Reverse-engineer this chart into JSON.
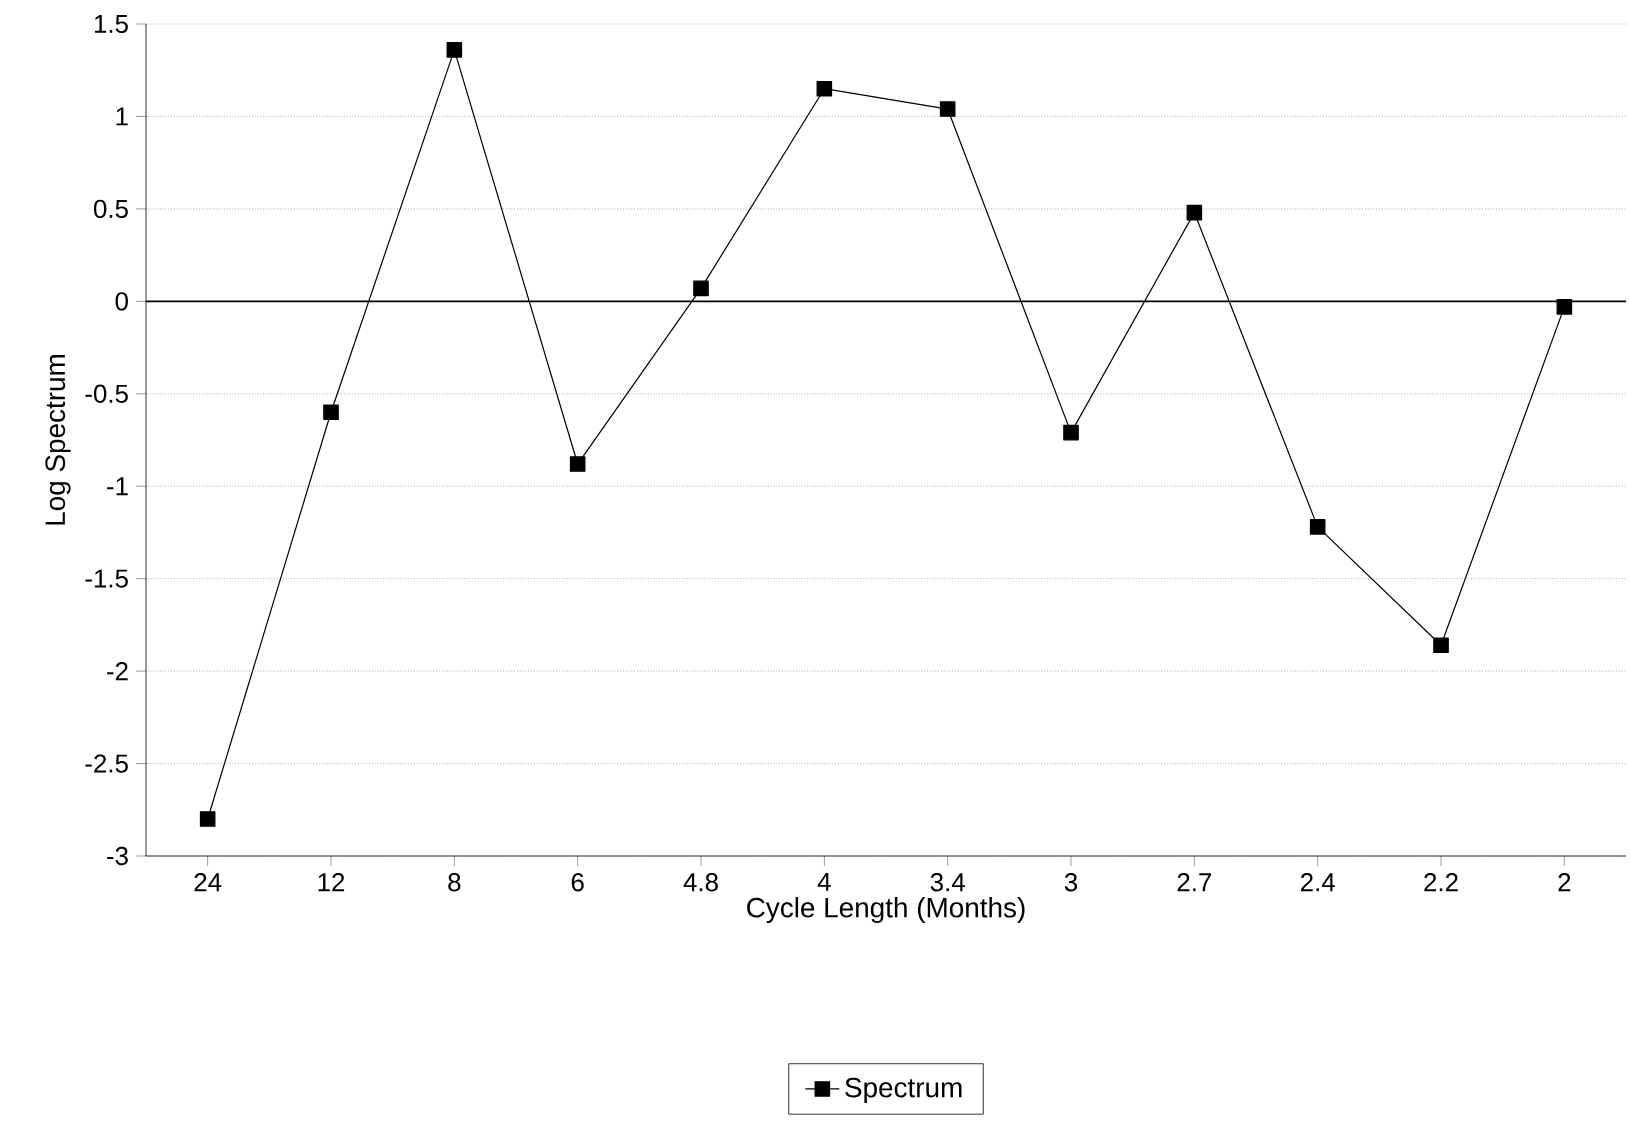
{
  "chart_data": {
    "type": "line",
    "xlabel": "Cycle Length (Months)",
    "ylabel": "Log Spectrum",
    "categories": [
      "24",
      "12",
      "8",
      "6",
      "4.8",
      "4",
      "3.4",
      "3",
      "2.7",
      "2.4",
      "2.2",
      "2"
    ],
    "series": [
      {
        "name": "Spectrum",
        "color": "#000000",
        "values": [
          -2.8,
          -0.6,
          1.36,
          -0.88,
          0.07,
          1.15,
          1.04,
          -0.71,
          0.48,
          -1.22,
          -1.86,
          -0.03
        ]
      }
    ],
    "ylim": [
      -3,
      1.5
    ],
    "yticks": [
      -3,
      -2.5,
      -2,
      -1.5,
      -1,
      -0.5,
      0,
      0.5,
      1,
      1.5
    ],
    "ref_lines": [
      {
        "axis": "y",
        "value": 0,
        "color": "#000000"
      }
    ],
    "grid": "y",
    "legend": "bottom",
    "marker": "square",
    "line_style": "solid"
  }
}
